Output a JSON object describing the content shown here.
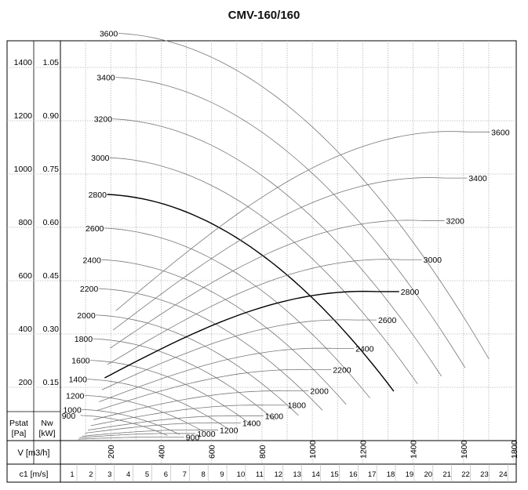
{
  "title": "CMV-160/160",
  "chart_data": {
    "type": "line",
    "title": "CMV-160/160",
    "x_axis": {
      "label": "V [m3/h]",
      "ticks": [
        200,
        400,
        600,
        800,
        1000,
        1200,
        1400,
        1600,
        1800
      ],
      "range": [
        0,
        1800
      ]
    },
    "velocity_axis": {
      "label": "c1 [m/s]",
      "ticks": [
        1,
        2,
        3,
        4,
        5,
        6,
        7,
        8,
        9,
        10,
        11,
        12,
        13,
        14,
        15,
        16,
        17,
        18,
        19,
        20,
        21,
        22,
        23,
        24
      ]
    },
    "y_axis_pressure": {
      "label": "Pstat",
      "unit": "[Pa]",
      "ticks": [
        200,
        400,
        600,
        800,
        1000,
        1200,
        1400
      ],
      "range": [
        0,
        1500
      ]
    },
    "y_axis_power": {
      "label": "Nw",
      "unit": "[kW]",
      "ticks": [
        "0.15",
        "0.30",
        "0.45",
        "0.60",
        "0.75",
        "0.90",
        "1.05"
      ]
    },
    "grid": true,
    "pressure_series": [
      {
        "rpm": "3600",
        "label": "3600",
        "max_p": 1510
      },
      {
        "rpm": "3400",
        "label": "3400",
        "max_p": 1347
      },
      {
        "rpm": "3200",
        "label": "3200",
        "max_p": 1193
      },
      {
        "rpm": "3000",
        "label": "3000",
        "max_p": 1049
      },
      {
        "rpm": "2800",
        "label": "2800",
        "max_p": 913
      },
      {
        "rpm": "2600",
        "label": "2600",
        "max_p": 788
      },
      {
        "rpm": "2400",
        "label": "2400",
        "max_p": 671
      },
      {
        "rpm": "2200",
        "label": "2200",
        "max_p": 564
      },
      {
        "rpm": "2000",
        "label": "2000",
        "max_p": 466
      },
      {
        "rpm": "1800",
        "label": "1800",
        "max_p": 378
      },
      {
        "rpm": "1600",
        "label": "1600",
        "max_p": 298
      },
      {
        "rpm": "1400",
        "label": "1400",
        "max_p": 228
      },
      {
        "rpm": "1200",
        "label": "1200",
        "max_p": 168
      },
      {
        "rpm": "1000",
        "label": "1000",
        "max_p": 116
      },
      {
        "rpm": "900",
        "label": "900",
        "max_p": 94
      }
    ],
    "power_series": [
      {
        "rpm": "3600",
        "label": "3600",
        "max_kw": 0.87
      },
      {
        "rpm": "3400",
        "label": "3400",
        "max_kw": 0.74
      },
      {
        "rpm": "3200",
        "label": "3200",
        "max_kw": 0.62
      },
      {
        "rpm": "3000",
        "label": "3000",
        "max_kw": 0.51
      },
      {
        "rpm": "2800",
        "label": "2800",
        "max_kw": 0.42
      },
      {
        "rpm": "2600",
        "label": "2600",
        "max_kw": 0.34
      },
      {
        "rpm": "2400",
        "label": "2400",
        "max_kw": 0.26
      },
      {
        "rpm": "2200",
        "label": "2200",
        "max_kw": 0.2
      },
      {
        "rpm": "2000",
        "label": "2000",
        "max_kw": 0.14
      },
      {
        "rpm": "1800",
        "label": "1800",
        "max_kw": 0.1
      },
      {
        "rpm": "1600",
        "label": "1600",
        "max_kw": 0.07
      },
      {
        "rpm": "1400",
        "label": "1400",
        "max_kw": 0.05
      },
      {
        "rpm": "1200",
        "label": "1200",
        "max_kw": 0.03
      },
      {
        "rpm": "1000",
        "label": "1000",
        "max_kw": 0.02
      },
      {
        "rpm": "900",
        "label": "900",
        "max_kw": 0.01
      }
    ],
    "highlighted_rpm": "2800",
    "colors": {
      "curve": "#777777",
      "highlight": "#000000",
      "grid": "#b5b5b5",
      "frame": "#000000"
    }
  }
}
